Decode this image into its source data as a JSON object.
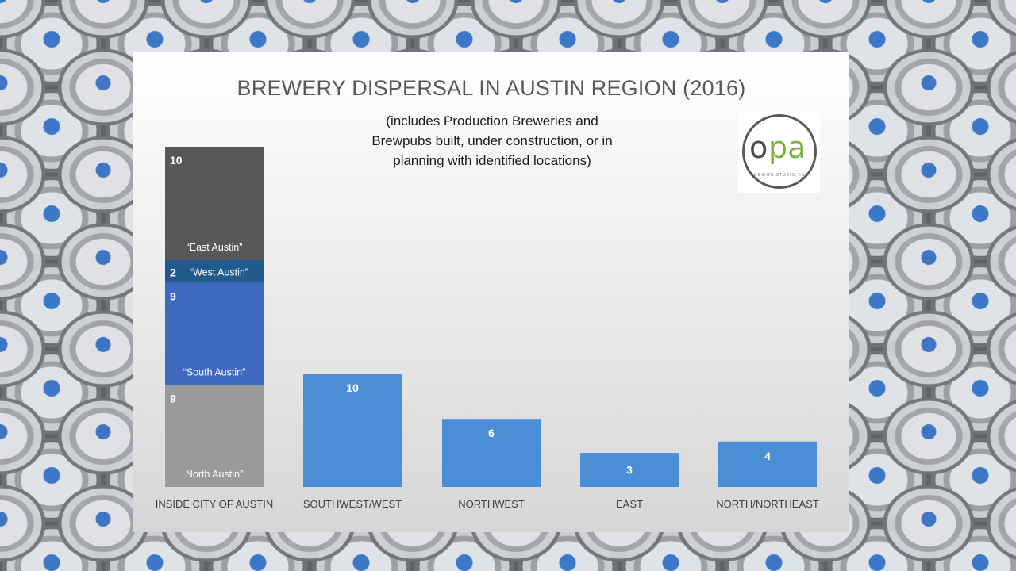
{
  "chart_data": {
    "type": "bar",
    "title": "BREWERY DISPERSAL IN AUSTIN REGION (2016)",
    "subtitle": [
      "(includes Production Breweries  and",
      "Brewpubs built, under construction, or in",
      "planning with identified locations)"
    ],
    "categories": [
      "INSIDE CITY OF AUSTIN",
      "SOUTHWEST/WEST",
      "NORTHWEST",
      "EAST",
      "NORTH/NORTHEAST"
    ],
    "stacked_first_bar": [
      {
        "name": "North Austin”",
        "value": 9,
        "color": "#9a9a9a"
      },
      {
        "name": "“South Austin”",
        "value": 9,
        "color": "#3f68c0"
      },
      {
        "name": "“West Austin”",
        "value": 2,
        "color": "#205a8c"
      },
      {
        "name": "“East Austin”",
        "value": 10,
        "color": "#575757"
      }
    ],
    "values": [
      null,
      10,
      6,
      3,
      4
    ],
    "bar_color": "#4a8fd6",
    "ylim": [
      0,
      30
    ]
  },
  "logo": {
    "mark_o": "o",
    "mark_pa": "pa",
    "tagline": "DESIGN STUDIO, INC."
  }
}
